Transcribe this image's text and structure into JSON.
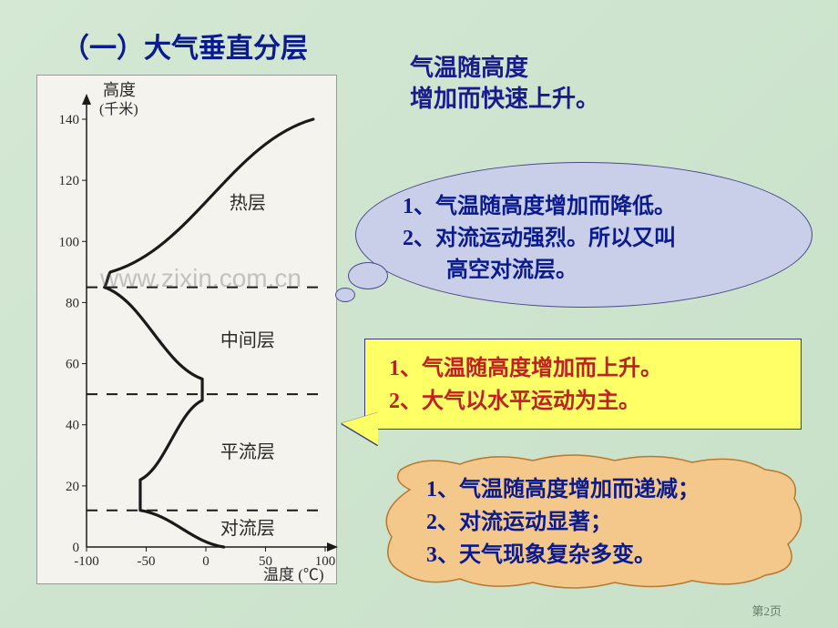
{
  "title": "（一）大气垂直分层",
  "top_note_l1": "气温随高度",
  "top_note_l2": "增加而快速上升。",
  "chart": {
    "y_label_l1": "高度",
    "y_label_l2": "(千米)",
    "x_label": "温度 (℃)",
    "y_ticks": [
      0,
      20,
      40,
      60,
      80,
      100,
      120,
      140
    ],
    "x_ticks": [
      -100,
      -50,
      0,
      50,
      100
    ],
    "layers": [
      {
        "name": "热层",
        "y_top": 140,
        "y_bot": 85
      },
      {
        "name": "中间层",
        "y_top": 85,
        "y_bot": 50
      },
      {
        "name": "平流层",
        "y_top": 50,
        "y_bot": 12
      },
      {
        "name": "对流层",
        "y_top": 12,
        "y_bot": 0
      }
    ],
    "boundary_y": [
      85,
      50,
      12
    ],
    "curve": [
      {
        "x": 15,
        "y": 0
      },
      {
        "x": -55,
        "y": 12
      },
      {
        "x": -55,
        "y": 22
      },
      {
        "x": -3,
        "y": 48
      },
      {
        "x": -3,
        "y": 55
      },
      {
        "x": -85,
        "y": 85
      },
      {
        "x": -80,
        "y": 90
      },
      {
        "x": 90,
        "y": 140
      }
    ],
    "colors": {
      "bg": "#f5f3ee",
      "line": "#1a1a1a",
      "text": "#2a2a2a"
    },
    "line_width": 3.2,
    "font_size_ticks": 15,
    "font_size_labels": 18
  },
  "callout1": {
    "l1": "1、气温随高度增加而降低。",
    "l2": "2、对流运动强烈。所以又叫",
    "l3": "　　高空对流层。",
    "bg": "#c9cfe8",
    "border": "#4a4a8a",
    "text_color": "#0a1a8f"
  },
  "callout2": {
    "l1": "1、气温随高度增加而上升。",
    "l2": "2、大气以水平运动为主。",
    "bg": "#ffff66",
    "border": "#3a3a7a",
    "text_color": "#c02020"
  },
  "callout3": {
    "l1": "1、气温随高度增加而递减；",
    "l2": "2、对流运动显著；",
    "l3": "3、天气现象复杂多变。",
    "bg": "#f4c78a",
    "border": "#b87830",
    "text_color": "#0a1a8f"
  },
  "watermark": "www.zixin.com.cn",
  "page_num": "第2页"
}
